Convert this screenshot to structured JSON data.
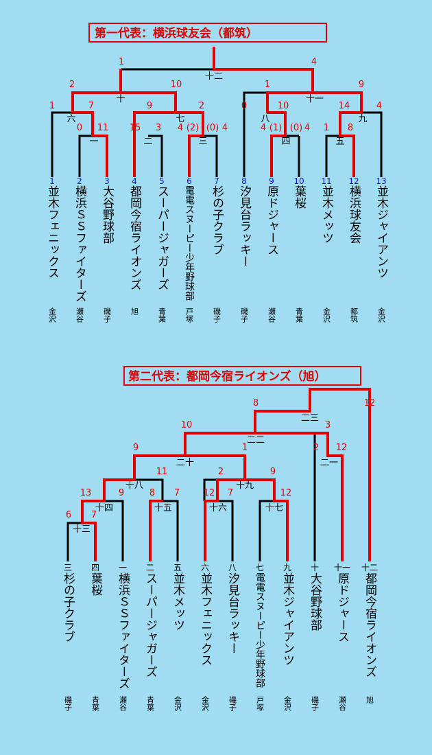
{
  "rep1": {
    "title": "第一代表：横浜球友会（都筑）",
    "teams": [
      {
        "no": "1",
        "name": "並木フェニックス",
        "region": "金沢"
      },
      {
        "no": "2",
        "name": "横浜ＳＳファイターズ",
        "region": "瀬谷"
      },
      {
        "no": "3",
        "name": "大谷野球部",
        "region": "磯子"
      },
      {
        "no": "4",
        "name": "都岡今宿ライオンズ",
        "region": "旭"
      },
      {
        "no": "5",
        "name": "スーパージャガーズ",
        "region": "青葉"
      },
      {
        "no": "6",
        "name": "電電スヌーピー少年野球部",
        "region": "戸塚"
      },
      {
        "no": "7",
        "name": "杉の子クラブ",
        "region": "磯子"
      },
      {
        "no": "8",
        "name": "汐見台ラッキー",
        "region": "磯子"
      },
      {
        "no": "9",
        "name": "原ドジャース",
        "region": "瀬谷"
      },
      {
        "no": "10",
        "name": "葉桜",
        "region": "青葉"
      },
      {
        "no": "11",
        "name": "並木メッツ",
        "region": "金沢"
      },
      {
        "no": "12",
        "name": "横浜球友会",
        "region": "都筑"
      },
      {
        "no": "13",
        "name": "並木ジャイアンツ",
        "region": "金沢"
      }
    ],
    "games": [
      "一",
      "二",
      "三",
      "四",
      "五",
      "六",
      "七",
      "八",
      "九",
      "十",
      "十一",
      "十二"
    ],
    "scores": [
      "0",
      "11",
      "15",
      "3",
      "4",
      "(2)",
      "(0)",
      "4",
      "4",
      "(1)",
      "(0)",
      "4",
      "1",
      "8",
      "1",
      "7",
      "9",
      "2",
      "0",
      "10",
      "14",
      "4",
      "2",
      "10",
      "1",
      "9",
      "1",
      "4"
    ]
  },
  "rep2": {
    "title": "第二代表：都岡今宿ライオンズ（旭）",
    "teams": [
      {
        "no": "三",
        "name": "杉の子クラブ",
        "region": "磯子"
      },
      {
        "no": "四",
        "name": "葉桜",
        "region": "青葉"
      },
      {
        "no": "一",
        "name": "横浜ＳＳファイターズ",
        "region": "瀬谷"
      },
      {
        "no": "二",
        "name": "スーパージャガーズ",
        "region": "青葉"
      },
      {
        "no": "五",
        "name": "並木メッツ",
        "region": "金沢"
      },
      {
        "no": "六",
        "name": "並木フェニックス",
        "region": "金沢"
      },
      {
        "no": "八",
        "name": "汐見台ラッキー",
        "region": "磯子"
      },
      {
        "no": "七",
        "name": "電電スヌーピー少年野球部",
        "region": "戸塚"
      },
      {
        "no": "九",
        "name": "並木ジャイアンツ",
        "region": "金沢"
      },
      {
        "no": "十",
        "name": "大谷野球部",
        "region": "磯子"
      },
      {
        "no": "十一",
        "name": "原ドジャース",
        "region": "瀬谷"
      },
      {
        "no": "十二",
        "name": "都岡今宿ライオンズ",
        "region": "旭"
      }
    ],
    "games": [
      "十三",
      "十四",
      "十五",
      "十六",
      "十七",
      "十八",
      "十九",
      "二十",
      "二一",
      "二二",
      "二三"
    ],
    "scores": [
      "6",
      "7",
      "13",
      "9",
      "11",
      "8",
      "7",
      "12",
      "7",
      "2",
      "9",
      "12",
      "9",
      "1",
      "10",
      "2",
      "12",
      "3",
      "8",
      "12"
    ]
  }
}
